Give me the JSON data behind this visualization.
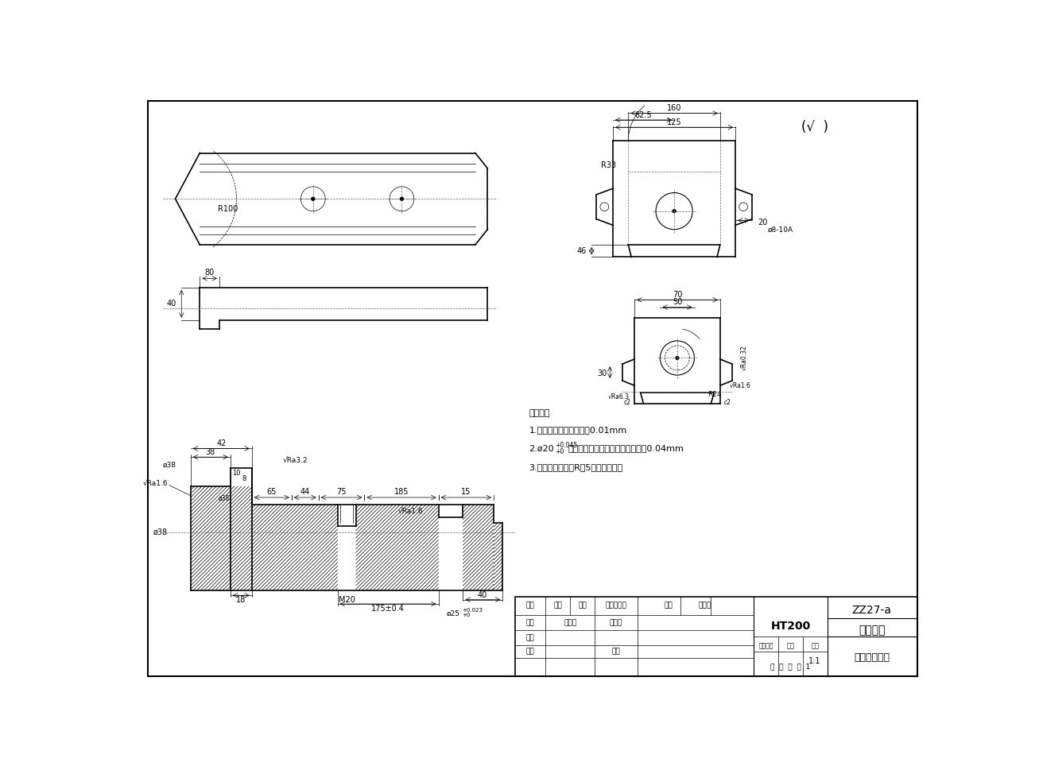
{
  "bg_color": "#ffffff",
  "line_color": "#000000",
  "title_block": {
    "material": "HT200",
    "drawing_no": "ZZ27-a",
    "part_name": "刀架溥板",
    "scale": "1:1",
    "designer": "郜永斑",
    "institution": "陕西国防学院"
  }
}
